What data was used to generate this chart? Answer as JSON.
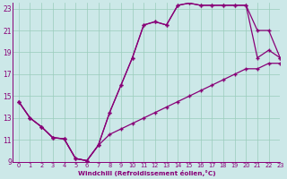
{
  "xlabel": "Windchill (Refroidissement éolien,°C)",
  "ylabel": "",
  "xlim": [
    -0.5,
    23
  ],
  "ylim": [
    9,
    23.5
  ],
  "xticks": [
    0,
    1,
    2,
    3,
    4,
    5,
    6,
    7,
    8,
    9,
    10,
    11,
    12,
    13,
    14,
    15,
    16,
    17,
    18,
    19,
    20,
    21,
    22,
    23
  ],
  "yticks": [
    9,
    11,
    13,
    15,
    17,
    19,
    21,
    23
  ],
  "bg_color": "#cce8e8",
  "line_color": "#880077",
  "grid_color": "#99ccbb",
  "curve1_x": [
    0,
    1,
    2,
    3,
    4,
    5,
    6,
    7,
    8,
    9,
    10,
    11,
    12,
    13,
    14,
    15,
    16,
    17,
    18,
    19,
    20,
    21,
    22,
    23
  ],
  "curve1_y": [
    14.5,
    13.0,
    12.2,
    11.2,
    11.1,
    9.3,
    9.1,
    10.5,
    13.5,
    16.0,
    18.5,
    21.5,
    21.8,
    21.5,
    23.3,
    23.5,
    23.3,
    23.3,
    23.3,
    23.3,
    23.3,
    21.0,
    21.0,
    18.5
  ],
  "curve2_x": [
    0,
    1,
    2,
    3,
    4,
    5,
    6,
    7,
    8,
    9,
    10,
    11,
    12,
    13,
    14,
    15,
    16,
    17,
    18,
    19,
    20,
    21,
    22,
    23
  ],
  "curve2_y": [
    14.5,
    13.0,
    12.2,
    11.2,
    11.1,
    9.3,
    9.1,
    10.5,
    13.5,
    16.0,
    18.5,
    21.5,
    21.8,
    21.5,
    23.3,
    23.5,
    23.3,
    23.3,
    23.3,
    23.3,
    23.3,
    18.5,
    19.2,
    18.5
  ],
  "curve3_x": [
    0,
    1,
    2,
    3,
    4,
    5,
    6,
    7,
    8,
    9,
    10,
    11,
    12,
    13,
    14,
    15,
    16,
    17,
    18,
    19,
    20,
    21,
    22,
    23
  ],
  "curve3_y": [
    14.5,
    13.0,
    12.2,
    11.2,
    11.1,
    9.3,
    9.1,
    10.5,
    11.5,
    12.0,
    12.5,
    13.0,
    13.5,
    14.0,
    14.5,
    15.0,
    15.5,
    16.0,
    16.5,
    17.0,
    17.5,
    17.5,
    18.0,
    18.0
  ]
}
